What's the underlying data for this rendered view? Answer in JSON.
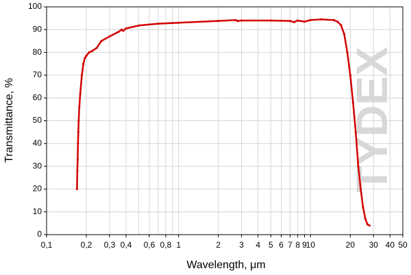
{
  "chart_data": {
    "type": "line",
    "watermark": "TYDEX",
    "x_label": "Wavelength, μm",
    "y_label": "Transmittance, %",
    "x_log": true,
    "grid": true,
    "xlim": [
      0.1,
      50
    ],
    "ylim": [
      0,
      100
    ],
    "xticks": [
      {
        "value": 0.1,
        "label": "0,1"
      },
      {
        "value": 0.2,
        "label": "0,2"
      },
      {
        "value": 0.3,
        "label": "0,3"
      },
      {
        "value": 0.4,
        "label": "0,4"
      },
      {
        "value": 0.6,
        "label": "0,6"
      },
      {
        "value": 0.8,
        "label": "0,8"
      },
      1,
      2,
      3,
      4,
      5,
      6,
      7,
      8,
      9,
      10,
      20,
      30,
      40,
      50
    ],
    "yticks": [
      0,
      10,
      20,
      30,
      40,
      50,
      60,
      70,
      80,
      90,
      100
    ],
    "x": [
      0.17,
      0.171,
      0.172,
      0.173,
      0.174,
      0.175,
      0.177,
      0.18,
      0.185,
      0.19,
      0.195,
      0.2,
      0.21,
      0.22,
      0.24,
      0.26,
      0.3,
      0.35,
      0.37,
      0.38,
      0.4,
      0.5,
      0.7,
      1,
      2,
      2.7,
      2.8,
      3,
      5,
      7,
      7.5,
      8,
      9,
      10,
      12,
      15,
      16,
      17,
      18,
      19,
      20,
      21,
      22,
      23,
      24,
      25,
      26,
      27,
      28
    ],
    "series": [
      {
        "name": "Transmittance",
        "color": "#d40000",
        "values": [
          20,
          28,
          33,
          40,
          45,
          50,
          56,
          62,
          70,
          75,
          77.5,
          78.5,
          80,
          80.5,
          82,
          85,
          87,
          89,
          90,
          89.5,
          90.5,
          91.8,
          92.6,
          93,
          93.8,
          94.2,
          93.8,
          94,
          94,
          93.8,
          93.3,
          94,
          93.5,
          94.2,
          94.5,
          94.2,
          93.5,
          92,
          88,
          80,
          70,
          58,
          45,
          30,
          20,
          12,
          7,
          4.5,
          4
        ]
      }
    ]
  }
}
